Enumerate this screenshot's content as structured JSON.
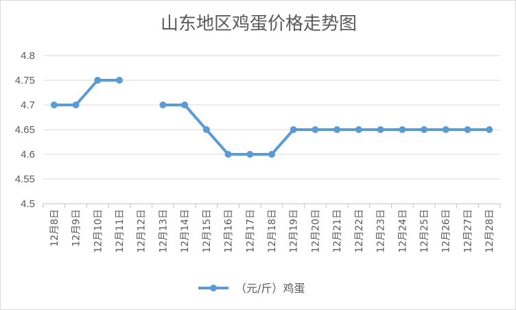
{
  "chart_data": {
    "type": "line",
    "title": "山东地区鸡蛋价格走势图",
    "xlabel": "",
    "ylabel": "",
    "categories": [
      "12月8日",
      "12月9日",
      "12月10日",
      "12月11日",
      "12月12日",
      "12月13日",
      "12月14日",
      "12月15日",
      "12月16日",
      "12月17日",
      "12月18日",
      "12月19日",
      "12月20日",
      "12月21日",
      "12月22日",
      "12月23日",
      "12月24日",
      "12月25日",
      "12月26日",
      "12月27日",
      "12月28日"
    ],
    "series": [
      {
        "name": "（元/斤）鸡蛋",
        "values": [
          4.7,
          4.7,
          4.75,
          4.75,
          null,
          4.7,
          4.7,
          4.65,
          4.6,
          4.6,
          4.6,
          4.65,
          4.65,
          4.65,
          4.65,
          4.65,
          4.65,
          4.65,
          4.65,
          4.65,
          4.65
        ],
        "color": "#5b9bd5"
      }
    ],
    "ylim": [
      4.5,
      4.8
    ],
    "yticks": [
      "4.5",
      "4.55",
      "4.6",
      "4.65",
      "4.7",
      "4.75",
      "4.8"
    ],
    "grid": "horizontal",
    "legend_position": "bottom"
  }
}
